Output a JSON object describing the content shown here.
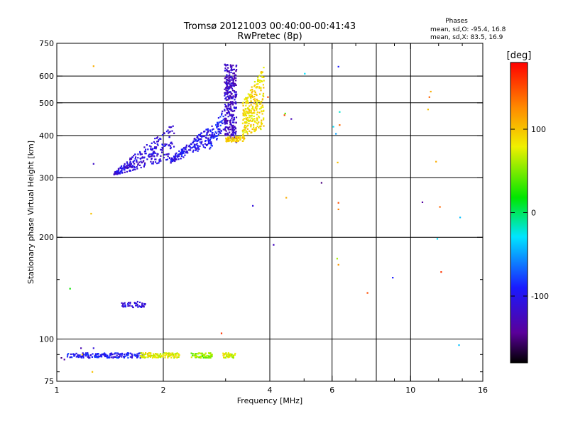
{
  "chart_data": {
    "type": "scatter",
    "title": "Tromsø 20121003 00:40:00-00:41:43",
    "subtitle": "RwPretec (8p)",
    "xlabel": "Frequency [MHz]",
    "ylabel": "Stationary phase Virtual Height [km]",
    "xscale": "log",
    "yscale": "log",
    "xlim": [
      1,
      16
    ],
    "ylim": [
      75,
      750
    ],
    "x_ticks": [
      1,
      2,
      4,
      6,
      10,
      16
    ],
    "x_tick_labels": [
      "1",
      "2",
      "4",
      "6",
      "10",
      "16"
    ],
    "x_minor_ticks": [
      3,
      5,
      7,
      8,
      9,
      12,
      14
    ],
    "x_gridlines": [
      2,
      4,
      6,
      8,
      10
    ],
    "y_ticks": [
      75,
      100,
      200,
      300,
      400,
      500,
      600,
      750
    ],
    "y_tick_labels": [
      "75",
      "100",
      "200",
      "300",
      "400",
      "500",
      "600",
      "750"
    ],
    "y_minor_ticks": [
      80,
      90,
      150
    ],
    "y_gridlines": [
      100,
      200,
      300,
      400,
      500,
      600
    ],
    "grid": true,
    "stats": {
      "heading": "Phases",
      "line_o": "mean, sd,O: -95.4, 16.8",
      "line_x": "mean, sd,X:  83.5, 16.9"
    },
    "colorbar": {
      "label": "[deg]",
      "range": [
        -180,
        180
      ],
      "ticks": [
        100,
        0,
        -100
      ],
      "tick_labels": [
        "100",
        "0",
        "-100"
      ],
      "colormap": "rainbow: black (-180), purple, blue, cyan, green, yellow, orange, red (180)"
    },
    "traces": [
      {
        "kind": "band",
        "f_start": 1.45,
        "f_end": 2.15,
        "h_low_start": 305,
        "h_low_end": 340,
        "h_high_start": 310,
        "h_high_end": 435,
        "phase": -110,
        "count": 260
      },
      {
        "kind": "band",
        "f_start": 2.1,
        "f_end": 2.75,
        "h_low_start": 332,
        "h_low_end": 375,
        "h_high_start": 345,
        "h_high_end": 430,
        "phase": -100,
        "count": 180
      },
      {
        "kind": "band",
        "f_start": 2.7,
        "f_end": 2.98,
        "h_low_start": 360,
        "h_low_end": 420,
        "h_high_start": 395,
        "h_high_end": 490,
        "phase": -95,
        "count": 70
      },
      {
        "kind": "band",
        "f_start": 2.98,
        "f_end": 3.22,
        "h_low_start": 400,
        "h_low_end": 380,
        "h_high_start": 650,
        "h_high_end": 650,
        "phase": -120,
        "count": 330
      },
      {
        "kind": "band",
        "f_start": 3.0,
        "f_end": 3.4,
        "h_low_start": 383,
        "h_low_end": 385,
        "h_high_start": 395,
        "h_high_end": 400,
        "phase": 95,
        "count": 60
      },
      {
        "kind": "band",
        "f_start": 3.35,
        "f_end": 3.85,
        "h_low_start": 400,
        "h_low_end": 420,
        "h_high_start": 500,
        "h_high_end": 640,
        "phase": 90,
        "count": 260
      },
      {
        "kind": "band",
        "f_start": 1.07,
        "f_end": 1.75,
        "h_low_start": 88,
        "h_low_end": 88,
        "h_high_start": 91,
        "h_high_end": 91,
        "phase": -95,
        "count": 160
      },
      {
        "kind": "band",
        "f_start": 1.72,
        "f_end": 2.22,
        "h_low_start": 88,
        "h_low_end": 88,
        "h_high_start": 91,
        "h_high_end": 91,
        "phase": 80,
        "count": 120
      },
      {
        "kind": "band",
        "f_start": 2.4,
        "f_end": 2.75,
        "h_low_start": 88,
        "h_low_end": 88,
        "h_high_start": 91,
        "h_high_end": 91,
        "phase": 55,
        "count": 70
      },
      {
        "kind": "band",
        "f_start": 2.95,
        "f_end": 3.2,
        "h_low_start": 88,
        "h_low_end": 88,
        "h_high_start": 91,
        "h_high_end": 91,
        "phase": 75,
        "count": 40
      },
      {
        "kind": "band",
        "f_start": 1.52,
        "f_end": 1.78,
        "h_low_start": 124,
        "h_low_end": 124,
        "h_high_start": 129,
        "h_high_end": 129,
        "phase": -110,
        "count": 45
      }
    ],
    "points": [
      {
        "x": 1.03,
        "y": 88,
        "phase": -150
      },
      {
        "x": 1.05,
        "y": 87,
        "phase": -140
      },
      {
        "x": 1.09,
        "y": 141,
        "phase": 20
      },
      {
        "x": 1.17,
        "y": 94,
        "phase": -130
      },
      {
        "x": 1.18,
        "y": 90,
        "phase": 100
      },
      {
        "x": 1.25,
        "y": 235,
        "phase": 100
      },
      {
        "x": 1.26,
        "y": 80,
        "phase": 100
      },
      {
        "x": 1.27,
        "y": 94,
        "phase": -110
      },
      {
        "x": 1.27,
        "y": 330,
        "phase": -120
      },
      {
        "x": 1.27,
        "y": 642,
        "phase": 110
      },
      {
        "x": 2.92,
        "y": 104,
        "phase": 160
      },
      {
        "x": 3.58,
        "y": 248,
        "phase": -110
      },
      {
        "x": 3.95,
        "y": 520,
        "phase": 150
      },
      {
        "x": 4.1,
        "y": 190,
        "phase": -125
      },
      {
        "x": 4.4,
        "y": 460,
        "phase": 150
      },
      {
        "x": 4.42,
        "y": 465,
        "phase": 40
      },
      {
        "x": 4.6,
        "y": 448,
        "phase": -130
      },
      {
        "x": 4.45,
        "y": 262,
        "phase": 110
      },
      {
        "x": 5.02,
        "y": 610,
        "phase": -30
      },
      {
        "x": 5.6,
        "y": 290,
        "phase": -150
      },
      {
        "x": 6.05,
        "y": 425,
        "phase": -30
      },
      {
        "x": 6.15,
        "y": 405,
        "phase": -50
      },
      {
        "x": 6.25,
        "y": 640,
        "phase": -90
      },
      {
        "x": 6.3,
        "y": 470,
        "phase": -20
      },
      {
        "x": 6.3,
        "y": 430,
        "phase": 140
      },
      {
        "x": 6.22,
        "y": 333,
        "phase": 100
      },
      {
        "x": 6.25,
        "y": 253,
        "phase": 150
      },
      {
        "x": 6.25,
        "y": 242,
        "phase": 130
      },
      {
        "x": 6.2,
        "y": 173,
        "phase": 60
      },
      {
        "x": 6.25,
        "y": 166,
        "phase": 120
      },
      {
        "x": 7.55,
        "y": 137,
        "phase": 150
      },
      {
        "x": 8.9,
        "y": 152,
        "phase": -90
      },
      {
        "x": 10.8,
        "y": 254,
        "phase": -140
      },
      {
        "x": 11.2,
        "y": 478,
        "phase": 100
      },
      {
        "x": 11.3,
        "y": 520,
        "phase": 140
      },
      {
        "x": 11.4,
        "y": 540,
        "phase": 110
      },
      {
        "x": 11.8,
        "y": 335,
        "phase": 110
      },
      {
        "x": 11.9,
        "y": 198,
        "phase": -30
      },
      {
        "x": 12.1,
        "y": 246,
        "phase": 140
      },
      {
        "x": 12.2,
        "y": 158,
        "phase": 160
      },
      {
        "x": 13.8,
        "y": 229,
        "phase": -40
      },
      {
        "x": 13.7,
        "y": 96,
        "phase": -40
      }
    ]
  }
}
